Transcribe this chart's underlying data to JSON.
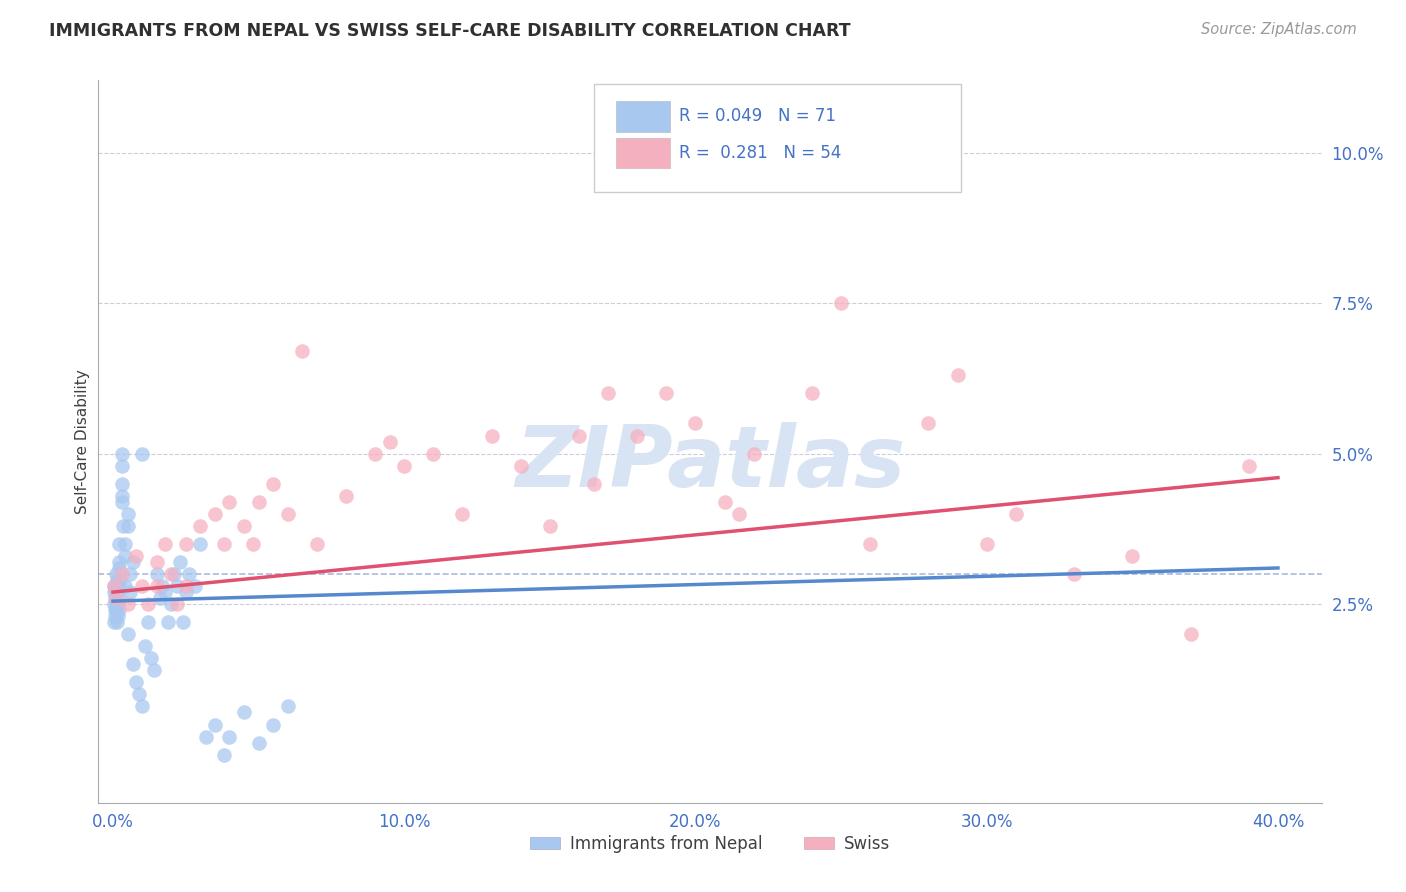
{
  "title": "IMMIGRANTS FROM NEPAL VS SWISS SELF-CARE DISABILITY CORRELATION CHART",
  "source_text": "Source: ZipAtlas.com",
  "ylabel": "Self-Care Disability",
  "legend_label1": "Immigrants from Nepal",
  "legend_label2": "Swiss",
  "r1": 0.049,
  "n1": 71,
  "r2": 0.281,
  "n2": 54,
  "xlim": [
    -0.005,
    0.415
  ],
  "ylim": [
    -0.008,
    0.112
  ],
  "xticks": [
    0.0,
    0.1,
    0.2,
    0.3,
    0.4
  ],
  "yticks": [
    0.025,
    0.05,
    0.075,
    0.1
  ],
  "color_blue": "#A8C8F0",
  "color_pink": "#F5B0C0",
  "color_blue_line": "#5588CC",
  "color_pink_line": "#E05070",
  "color_title": "#303030",
  "color_axis_labels": "#4472C4",
  "watermark_color": "#D8E4F4",
  "nepal_x": [
    0.0002,
    0.0003,
    0.0004,
    0.0005,
    0.0006,
    0.0007,
    0.0008,
    0.0009,
    0.001,
    0.001,
    0.001,
    0.001,
    0.0012,
    0.0013,
    0.0014,
    0.0015,
    0.0016,
    0.0018,
    0.002,
    0.002,
    0.002,
    0.002,
    0.002,
    0.0022,
    0.0025,
    0.003,
    0.003,
    0.003,
    0.003,
    0.003,
    0.0035,
    0.004,
    0.004,
    0.004,
    0.005,
    0.005,
    0.005,
    0.006,
    0.006,
    0.007,
    0.007,
    0.008,
    0.009,
    0.01,
    0.01,
    0.011,
    0.012,
    0.013,
    0.014,
    0.015,
    0.016,
    0.017,
    0.018,
    0.019,
    0.02,
    0.021,
    0.022,
    0.023,
    0.024,
    0.025,
    0.026,
    0.028,
    0.03,
    0.032,
    0.035,
    0.038,
    0.04,
    0.045,
    0.05,
    0.055,
    0.06
  ],
  "nepal_y": [
    0.027,
    0.025,
    0.028,
    0.022,
    0.026,
    0.024,
    0.023,
    0.027,
    0.026,
    0.025,
    0.028,
    0.024,
    0.03,
    0.022,
    0.029,
    0.027,
    0.023,
    0.025,
    0.035,
    0.032,
    0.028,
    0.026,
    0.031,
    0.024,
    0.029,
    0.05,
    0.048,
    0.043,
    0.042,
    0.045,
    0.038,
    0.035,
    0.033,
    0.028,
    0.04,
    0.038,
    0.02,
    0.03,
    0.027,
    0.032,
    0.015,
    0.012,
    0.01,
    0.008,
    0.05,
    0.018,
    0.022,
    0.016,
    0.014,
    0.03,
    0.026,
    0.028,
    0.027,
    0.022,
    0.025,
    0.03,
    0.028,
    0.032,
    0.022,
    0.027,
    0.03,
    0.028,
    0.035,
    0.003,
    0.005,
    0.0,
    0.003,
    0.007,
    0.002,
    0.005,
    0.008
  ],
  "swiss_x": [
    0.0005,
    0.001,
    0.003,
    0.005,
    0.008,
    0.01,
    0.012,
    0.015,
    0.015,
    0.018,
    0.02,
    0.022,
    0.025,
    0.025,
    0.03,
    0.035,
    0.038,
    0.04,
    0.045,
    0.048,
    0.05,
    0.055,
    0.06,
    0.065,
    0.07,
    0.08,
    0.09,
    0.095,
    0.1,
    0.11,
    0.12,
    0.13,
    0.14,
    0.15,
    0.16,
    0.165,
    0.17,
    0.18,
    0.19,
    0.2,
    0.21,
    0.215,
    0.22,
    0.24,
    0.25,
    0.26,
    0.28,
    0.29,
    0.3,
    0.31,
    0.33,
    0.35,
    0.37,
    0.39
  ],
  "swiss_y": [
    0.028,
    0.026,
    0.03,
    0.025,
    0.033,
    0.028,
    0.025,
    0.032,
    0.028,
    0.035,
    0.03,
    0.025,
    0.035,
    0.028,
    0.038,
    0.04,
    0.035,
    0.042,
    0.038,
    0.035,
    0.042,
    0.045,
    0.04,
    0.067,
    0.035,
    0.043,
    0.05,
    0.052,
    0.048,
    0.05,
    0.04,
    0.053,
    0.048,
    0.038,
    0.053,
    0.045,
    0.06,
    0.053,
    0.06,
    0.055,
    0.042,
    0.04,
    0.05,
    0.06,
    0.075,
    0.035,
    0.055,
    0.063,
    0.035,
    0.04,
    0.03,
    0.033,
    0.02,
    0.048
  ],
  "nepal_trend_x": [
    0.0,
    0.4
  ],
  "nepal_trend_y": [
    0.0255,
    0.031
  ],
  "swiss_trend_x": [
    0.0,
    0.4
  ],
  "swiss_trend_y": [
    0.027,
    0.046
  ],
  "ref_line_y": 0.03
}
